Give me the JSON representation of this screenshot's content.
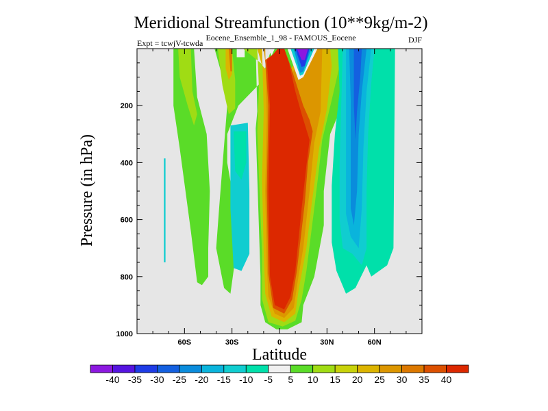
{
  "chart_data": {
    "type": "contour",
    "title": "Meridional Streamfunction (10**9kg/m-2)",
    "subtitle_center": "Eocene_Ensemble_1_98 - FAMOUS_Eocene",
    "subtitle_left": "Expt = tcwjV-tcwda",
    "season": "DJF",
    "xlabel": "Latitude",
    "ylabel": "Pressure (in hPa)",
    "xlim": [
      -90,
      90
    ],
    "ylim": [
      0,
      1000
    ],
    "y_reversed": true,
    "x_ticks": [
      {
        "value": -60,
        "label": "60S"
      },
      {
        "value": -30,
        "label": "30S"
      },
      {
        "value": 0,
        "label": "0"
      },
      {
        "value": 30,
        "label": "30N"
      },
      {
        "value": 60,
        "label": "60N"
      }
    ],
    "y_ticks": [
      {
        "value": 200,
        "label": "200"
      },
      {
        "value": 400,
        "label": "400"
      },
      {
        "value": 600,
        "label": "600"
      },
      {
        "value": 800,
        "label": "800"
      },
      {
        "value": 1000,
        "label": "1000"
      }
    ],
    "background_color": "#e6e6e6",
    "contour_levels": [
      -40,
      -35,
      -30,
      -25,
      -20,
      -15,
      -10,
      -5,
      5,
      10,
      15,
      20,
      25,
      30,
      35,
      40
    ],
    "colorbar_colors": [
      "#8c18e0",
      "#5514e0",
      "#1e3ce6",
      "#1460e0",
      "#0a8cdc",
      "#0ab4dc",
      "#10cdd0",
      "#00e0aa",
      "#f0f0f0",
      "#5adc28",
      "#a0dc14",
      "#c8d20a",
      "#dcb400",
      "#dc9600",
      "#dc7800",
      "#dc5000",
      "#dc2800"
    ],
    "regions": [
      {
        "color": "#5adc28",
        "points": [
          [
            -67,
            0
          ],
          [
            -54,
            0
          ],
          [
            -52,
            170
          ],
          [
            -46,
            300
          ],
          [
            -44,
            500
          ],
          [
            -45,
            700
          ],
          [
            -45,
            800
          ],
          [
            -49,
            830
          ],
          [
            -52,
            820
          ],
          [
            -56,
            640
          ],
          [
            -63,
            350
          ],
          [
            -67,
            200
          ]
        ]
      },
      {
        "color": "#a0dc14",
        "points": [
          [
            -64,
            0
          ],
          [
            -56,
            0
          ],
          [
            -55,
            150
          ],
          [
            -52,
            230
          ],
          [
            -54,
            270
          ],
          [
            -58,
            200
          ],
          [
            -63,
            100
          ]
        ]
      },
      {
        "color": "#10cdd0",
        "points": [
          [
            -73,
            385
          ],
          [
            -72,
            385
          ],
          [
            -72,
            750
          ],
          [
            -73,
            750
          ]
        ]
      },
      {
        "color": "#5adc28",
        "points": [
          [
            -41,
            0
          ],
          [
            -15,
            0
          ],
          [
            -14,
            220
          ],
          [
            -15,
            280
          ],
          [
            -12,
            800
          ],
          [
            -12,
            900
          ],
          [
            -9,
            960
          ],
          [
            -2,
            985
          ],
          [
            5,
            985
          ],
          [
            14,
            960
          ],
          [
            15,
            900
          ],
          [
            22,
            800
          ],
          [
            28,
            620
          ],
          [
            28,
            500
          ],
          [
            30,
            400
          ],
          [
            32,
            300
          ],
          [
            38,
            220
          ],
          [
            41,
            60
          ],
          [
            40,
            0
          ],
          [
            -5,
            0
          ],
          [
            -12,
            120
          ],
          [
            -26,
            200
          ],
          [
            -33,
            300
          ],
          [
            -33,
            400
          ],
          [
            -28,
            560
          ],
          [
            -28,
            740
          ],
          [
            -31,
            860
          ],
          [
            -35,
            840
          ],
          [
            -40,
            700
          ],
          [
            -38,
            550
          ],
          [
            -33,
            200
          ],
          [
            -36,
            100
          ]
        ]
      },
      {
        "color": "#10cdd0",
        "points": [
          [
            -31,
            270
          ],
          [
            -20,
            260
          ],
          [
            -19,
            500
          ],
          [
            -19,
            720
          ],
          [
            -24,
            780
          ],
          [
            -29,
            770
          ],
          [
            -31,
            560
          ]
        ]
      },
      {
        "color": "#00e0aa",
        "points": [
          [
            -29,
            290
          ],
          [
            -21,
            290
          ],
          [
            -21,
            400
          ],
          [
            -24,
            460
          ],
          [
            -28,
            430
          ]
        ]
      },
      {
        "color": "#a0dc14",
        "points": [
          [
            -39,
            0
          ],
          [
            -30,
            0
          ],
          [
            -28,
            110
          ],
          [
            -28,
            210
          ],
          [
            -32,
            230
          ],
          [
            -36,
            130
          ]
        ]
      },
      {
        "color": "#dcb400",
        "points": [
          [
            -34,
            0
          ],
          [
            -30,
            0
          ],
          [
            -30,
            90
          ],
          [
            -32,
            110
          ],
          [
            -34,
            70
          ]
        ]
      },
      {
        "color": "#dc7800",
        "points": [
          [
            -32,
            0
          ],
          [
            -30,
            0
          ],
          [
            -30,
            80
          ],
          [
            -31,
            80
          ]
        ]
      },
      {
        "color": "#f0f0f0",
        "points": [
          [
            -27,
            0
          ],
          [
            -22,
            0
          ],
          [
            -22,
            30
          ],
          [
            -27,
            30
          ]
        ]
      },
      {
        "color": "#a0dc14",
        "points": [
          [
            -23,
            0
          ],
          [
            -14,
            0
          ],
          [
            -13,
            140
          ],
          [
            -14,
            290
          ],
          [
            -13,
            450
          ],
          [
            -11,
            720
          ],
          [
            -11,
            880
          ],
          [
            -7,
            960
          ],
          [
            2,
            975
          ],
          [
            10,
            955
          ],
          [
            14,
            880
          ],
          [
            17,
            780
          ],
          [
            22,
            560
          ],
          [
            25,
            420
          ],
          [
            27,
            320
          ],
          [
            33,
            180
          ],
          [
            38,
            60
          ],
          [
            37,
            0
          ],
          [
            17,
            0
          ],
          [
            7,
            80
          ],
          [
            3,
            30
          ],
          [
            -2,
            30
          ],
          [
            -8,
            80
          ],
          [
            -12,
            50
          ]
        ]
      },
      {
        "color": "#dcb400",
        "points": [
          [
            -14,
            0
          ],
          [
            -11,
            0
          ],
          [
            -10,
            220
          ],
          [
            -11,
            460
          ],
          [
            -10,
            710
          ],
          [
            -9,
            860
          ],
          [
            -5,
            940
          ],
          [
            3,
            960
          ],
          [
            10,
            930
          ],
          [
            12,
            850
          ],
          [
            17,
            700
          ],
          [
            20,
            560
          ],
          [
            25,
            350
          ],
          [
            30,
            210
          ],
          [
            33,
            60
          ],
          [
            32,
            0
          ],
          [
            16,
            0
          ],
          [
            6,
            80
          ],
          [
            3,
            30
          ],
          [
            -3,
            30
          ],
          [
            -7,
            80
          ],
          [
            -11,
            60
          ]
        ]
      },
      {
        "color": "#dc9600",
        "points": [
          [
            -10,
            0
          ],
          [
            -9,
            0
          ],
          [
            -8,
            250
          ],
          [
            -9,
            500
          ],
          [
            -8,
            760
          ],
          [
            -7,
            870
          ],
          [
            -3,
            930
          ],
          [
            3,
            945
          ],
          [
            9,
            910
          ],
          [
            12,
            800
          ],
          [
            15,
            700
          ],
          [
            19,
            500
          ],
          [
            22,
            330
          ],
          [
            26,
            220
          ],
          [
            27,
            0
          ],
          [
            15,
            0
          ],
          [
            8,
            90
          ],
          [
            5,
            30
          ],
          [
            -2,
            25
          ],
          [
            -8,
            90
          ]
        ]
      },
      {
        "color": "#dc5000",
        "points": [
          [
            -9,
            40
          ],
          [
            -7,
            200
          ],
          [
            -8,
            500
          ],
          [
            -7,
            790
          ],
          [
            -4,
            910
          ],
          [
            3,
            930
          ],
          [
            8,
            880
          ],
          [
            11,
            780
          ],
          [
            16,
            540
          ],
          [
            18,
            400
          ],
          [
            21,
            290
          ],
          [
            19,
            250
          ],
          [
            15,
            200
          ],
          [
            11,
            130
          ],
          [
            7,
            60
          ],
          [
            3,
            0
          ],
          [
            -1,
            0
          ],
          [
            -4,
            20
          ]
        ]
      },
      {
        "color": "#dc2800",
        "points": [
          [
            -8,
            40
          ],
          [
            -6,
            200
          ],
          [
            -7,
            500
          ],
          [
            -6,
            800
          ],
          [
            -3,
            900
          ],
          [
            3,
            915
          ],
          [
            7,
            870
          ],
          [
            10,
            780
          ],
          [
            14,
            560
          ],
          [
            17,
            410
          ],
          [
            19,
            320
          ],
          [
            14,
            230
          ],
          [
            10,
            150
          ],
          [
            6,
            50
          ],
          [
            3,
            0
          ],
          [
            -1,
            0
          ],
          [
            -4,
            20
          ]
        ]
      },
      {
        "color": "#f0f0f0",
        "points": [
          [
            -7,
            0
          ],
          [
            -3,
            0
          ],
          [
            -5,
            25
          ]
        ]
      },
      {
        "color": "#f0f0f0",
        "points": [
          [
            5,
            0
          ],
          [
            24,
            0
          ],
          [
            15,
            100
          ],
          [
            12,
            110
          ]
        ]
      },
      {
        "color": "#10cdd0",
        "points": [
          [
            7,
            0
          ],
          [
            22,
            0
          ],
          [
            15,
            90
          ],
          [
            13,
            95
          ]
        ]
      },
      {
        "color": "#0a8cdc",
        "points": [
          [
            9,
            0
          ],
          [
            20,
            0
          ],
          [
            15,
            80
          ],
          [
            13,
            85
          ]
        ]
      },
      {
        "color": "#1e3ce6",
        "points": [
          [
            10,
            0
          ],
          [
            19,
            0
          ],
          [
            16,
            60
          ],
          [
            14,
            65
          ]
        ]
      },
      {
        "color": "#8c18e0",
        "points": [
          [
            11,
            0
          ],
          [
            18,
            0
          ],
          [
            16,
            40
          ],
          [
            14,
            40
          ]
        ]
      },
      {
        "color": "#00e0aa",
        "points": [
          [
            37,
            0
          ],
          [
            73,
            0
          ],
          [
            72,
            700
          ],
          [
            68,
            760
          ],
          [
            58,
            800
          ],
          [
            55,
            760
          ],
          [
            48,
            840
          ],
          [
            42,
            860
          ],
          [
            36,
            780
          ],
          [
            33,
            680
          ],
          [
            33,
            480
          ],
          [
            35,
            300
          ],
          [
            38,
            150
          ]
        ]
      },
      {
        "color": "#10cdd0",
        "points": [
          [
            40,
            0
          ],
          [
            60,
            0
          ],
          [
            58,
            120
          ],
          [
            56,
            300
          ],
          [
            55,
            500
          ],
          [
            55,
            700
          ],
          [
            52,
            760
          ],
          [
            46,
            720
          ],
          [
            40,
            700
          ],
          [
            38,
            600
          ],
          [
            38,
            400
          ],
          [
            39,
            200
          ]
        ]
      },
      {
        "color": "#0ab4dc",
        "points": [
          [
            42,
            0
          ],
          [
            58,
            0
          ],
          [
            55,
            150
          ],
          [
            53,
            350
          ],
          [
            52,
            560
          ],
          [
            50,
            700
          ],
          [
            45,
            660
          ],
          [
            42,
            580
          ],
          [
            42,
            380
          ],
          [
            42,
            200
          ]
        ]
      },
      {
        "color": "#0a8cdc",
        "points": [
          [
            44,
            0
          ],
          [
            55,
            0
          ],
          [
            52,
            150
          ],
          [
            50,
            300
          ],
          [
            49,
            500
          ],
          [
            47,
            620
          ],
          [
            45,
            560
          ],
          [
            45,
            350
          ],
          [
            45,
            180
          ]
        ]
      },
      {
        "color": "#1460e0",
        "points": [
          [
            47,
            0
          ],
          [
            52,
            0
          ],
          [
            51,
            100
          ],
          [
            49,
            220
          ],
          [
            48,
            320
          ],
          [
            47,
            200
          ]
        ]
      }
    ]
  }
}
